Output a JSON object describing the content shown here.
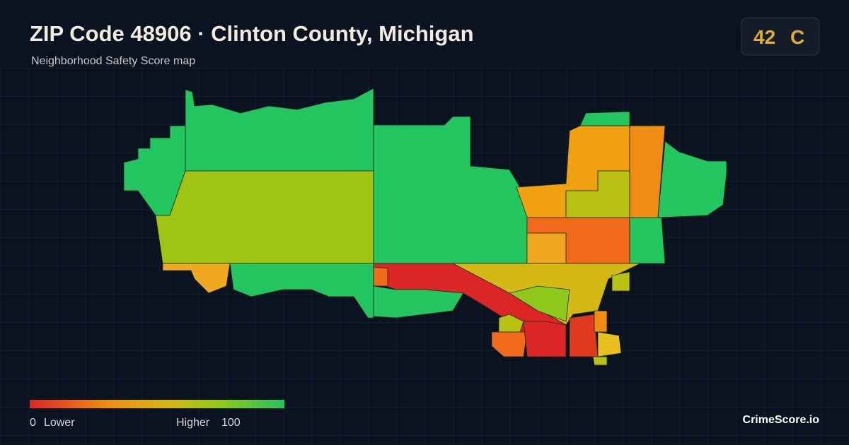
{
  "header": {
    "title": "ZIP Code 48906 · Clinton County, Michigan",
    "subtitle": "Neighborhood Safety Score map"
  },
  "badge": {
    "score": 42,
    "grade": "C"
  },
  "legend": {
    "min": 0,
    "min_label": "Lower",
    "max_label": "Higher",
    "max": 100
  },
  "footer": {
    "brand": "CrimeScore.io"
  }
}
